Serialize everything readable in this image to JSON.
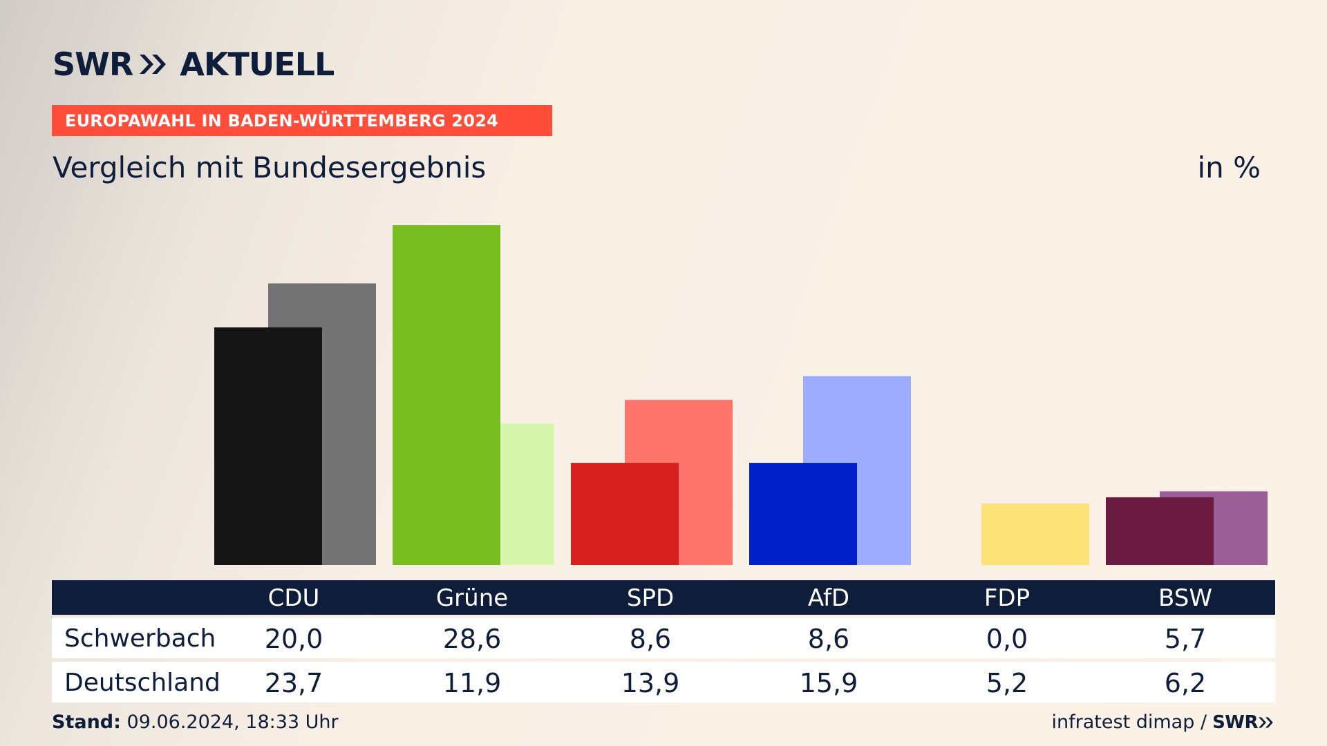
{
  "header": {
    "brand": "SWR",
    "brand_suffix": "AKTUELL",
    "banner": "EUROPAWAHL IN BADEN-WÜRTTEMBERG 2024",
    "subtitle": "Vergleich mit Bundesergebnis",
    "unit": "in %"
  },
  "colors": {
    "brand_navy": "#0e1d3a",
    "banner_red": "#ff4d3a"
  },
  "chart_data": {
    "type": "bar",
    "categories": [
      "CDU",
      "Grüne",
      "SPD",
      "AfD",
      "FDP",
      "BSW"
    ],
    "series": [
      {
        "name": "Schwerbach",
        "values": [
          20.0,
          28.6,
          8.6,
          8.6,
          0.0,
          5.7
        ],
        "colors": [
          "#151515",
          "#78bd1f",
          "#d61f1f",
          "#0021c7",
          "#f7d900",
          "#6b1a41"
        ]
      },
      {
        "name": "Deutschland",
        "values": [
          23.7,
          11.9,
          13.9,
          15.9,
          5.2,
          6.2
        ],
        "colors": [
          "#737373",
          "#d6f5ad",
          "#ff756b",
          "#9eacff",
          "#fde27a",
          "#9b5e96"
        ]
      }
    ],
    "ylim": [
      0,
      30
    ],
    "grid": false,
    "legend": "none"
  },
  "table": {
    "headers": [
      "CDU",
      "Grüne",
      "SPD",
      "AfD",
      "FDP",
      "BSW"
    ],
    "rows": [
      {
        "label": "Schwerbach",
        "values": [
          "20,0",
          "28,6",
          "8,6",
          "8,6",
          "0,0",
          "5,7"
        ]
      },
      {
        "label": "Deutschland",
        "values": [
          "23,7",
          "11,9",
          "13,9",
          "15,9",
          "5,2",
          "6,2"
        ]
      }
    ]
  },
  "footer": {
    "stand_label": "Stand:",
    "stand_value": "09.06.2024, 18:33 Uhr",
    "source": "infratest dimap /",
    "source_brand": "SWR"
  }
}
